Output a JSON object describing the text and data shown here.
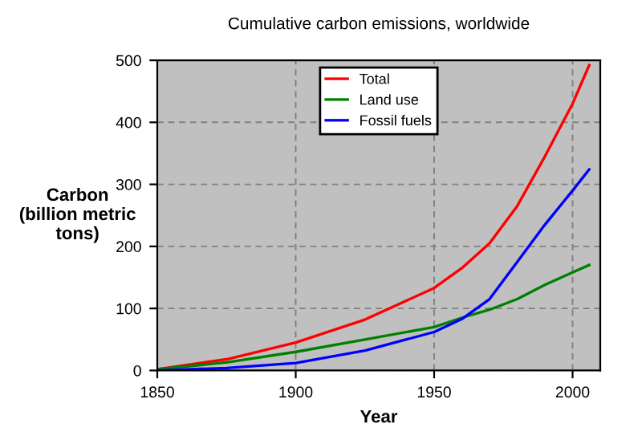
{
  "chart_data": {
    "type": "line",
    "title": "Cumulative carbon emissions, worldwide",
    "xlabel": "Year",
    "ylabel": "Carbon\n(billion metric\ntons)",
    "x": [
      1850,
      1875,
      1900,
      1925,
      1950,
      1960,
      1970,
      1980,
      1990,
      2000,
      2006
    ],
    "series": [
      {
        "name": "Total",
        "color": "#ff0000",
        "values": [
          2,
          18,
          45,
          82,
          133,
          165,
          205,
          265,
          345,
          430,
          492
        ]
      },
      {
        "name": "Land use",
        "color": "#008000",
        "values": [
          2,
          13,
          30,
          50,
          70,
          85,
          98,
          115,
          138,
          158,
          170
        ]
      },
      {
        "name": "Fossil fuels",
        "color": "#0000ff",
        "values": [
          0,
          4,
          12,
          32,
          62,
          83,
          115,
          175,
          235,
          290,
          324
        ]
      }
    ],
    "xlim": [
      1850,
      2010
    ],
    "xticks": [
      1850,
      1900,
      1950,
      2000
    ],
    "ylim": [
      0,
      500
    ],
    "yticks": [
      0,
      100,
      200,
      300,
      400,
      500
    ],
    "grid": true,
    "legend": "top",
    "line_style": "solid",
    "marker": "none"
  }
}
